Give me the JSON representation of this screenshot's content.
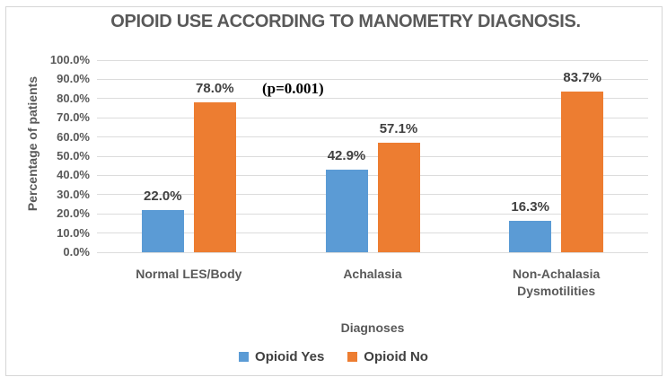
{
  "chart_data": {
    "type": "bar",
    "title": "OPIOID USE ACCORDING TO MANOMETRY DIAGNOSIS.",
    "xlabel": "Diagnoses",
    "ylabel": "Percentage of patients",
    "annotation": "(p=0.001)",
    "categories": [
      "Normal LES/Body",
      "Achalasia",
      "Non-Achalasia Dysmotilities"
    ],
    "series": [
      {
        "name": "Opioid Yes",
        "color": "#5B9BD5",
        "values": [
          22.0,
          42.9,
          16.3
        ],
        "labels": [
          "22.0%",
          "42.9%",
          "16.3%"
        ]
      },
      {
        "name": "Opioid No",
        "color": "#ED7D31",
        "values": [
          78.0,
          57.1,
          83.7
        ],
        "labels": [
          "78.0%",
          "57.1%",
          "83.7%"
        ]
      }
    ],
    "ylim": [
      0,
      100
    ],
    "ytick_step": 10,
    "ytick_labels": [
      "0.0%",
      "10.0%",
      "20.0%",
      "30.0%",
      "40.0%",
      "50.0%",
      "60.0%",
      "70.0%",
      "80.0%",
      "90.0%",
      "100.0%"
    ],
    "grid": true,
    "grid_color": "#DCDCDC",
    "axis_text_color": "#595959",
    "data_label_color": "#404040",
    "legend_position": "bottom"
  }
}
